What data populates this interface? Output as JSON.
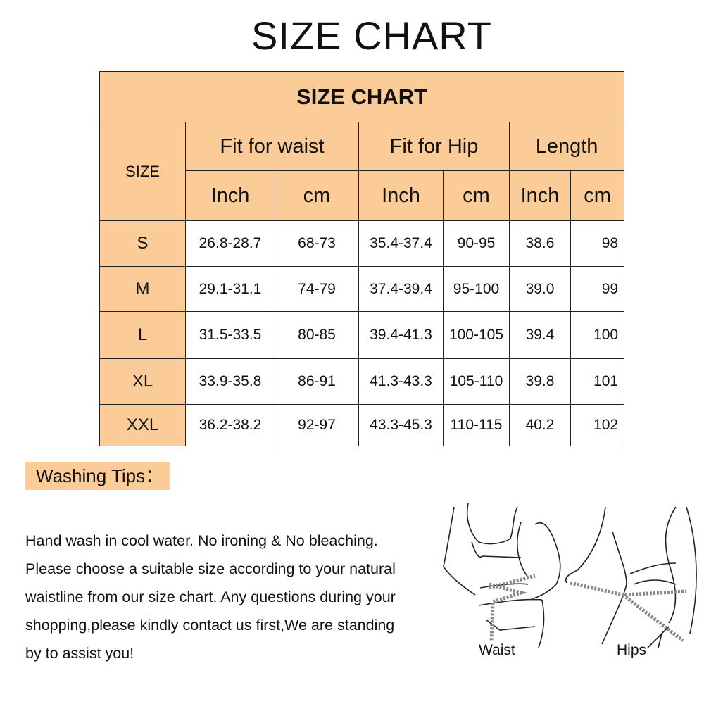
{
  "page_title": "SIZE CHART",
  "table": {
    "title": "SIZE CHART",
    "size_header": "SIZE",
    "groups": [
      "Fit for waist",
      "Fit for Hip",
      "Length"
    ],
    "units": [
      "Inch",
      "cm",
      "Inch",
      "cm",
      "Inch",
      "cm"
    ],
    "rows": [
      [
        "S",
        "26.8-28.7",
        "68-73",
        "35.4-37.4",
        "90-95",
        "38.6",
        "98"
      ],
      [
        "M",
        "29.1-31.1",
        "74-79",
        "37.4-39.4",
        "95-100",
        "39.0",
        "99"
      ],
      [
        "L",
        "31.5-33.5",
        "80-85",
        "39.4-41.3",
        "100-105",
        "39.4",
        "100"
      ],
      [
        "XL",
        "33.9-35.8",
        "86-91",
        "41.3-43.3",
        "105-110",
        "39.8",
        "101"
      ],
      [
        "XXL",
        "36.2-38.2",
        "92-97",
        "43.3-45.3",
        "110-115",
        "40.2",
        "102"
      ]
    ]
  },
  "washing": {
    "label": "Washing Tips：",
    "lines": [
      "Hand wash in cool water. No ironing & No bleaching.",
      "Please choose a suitable size according to your natural",
      "waistline from our size chart. Any questions during your",
      "shopping,please kindly contact us first,We are standing",
      "by to assist you!"
    ]
  },
  "illustration": {
    "waist_label": "Waist",
    "hips_label": "Hips"
  },
  "colors": {
    "accent": "#fbcc98"
  }
}
